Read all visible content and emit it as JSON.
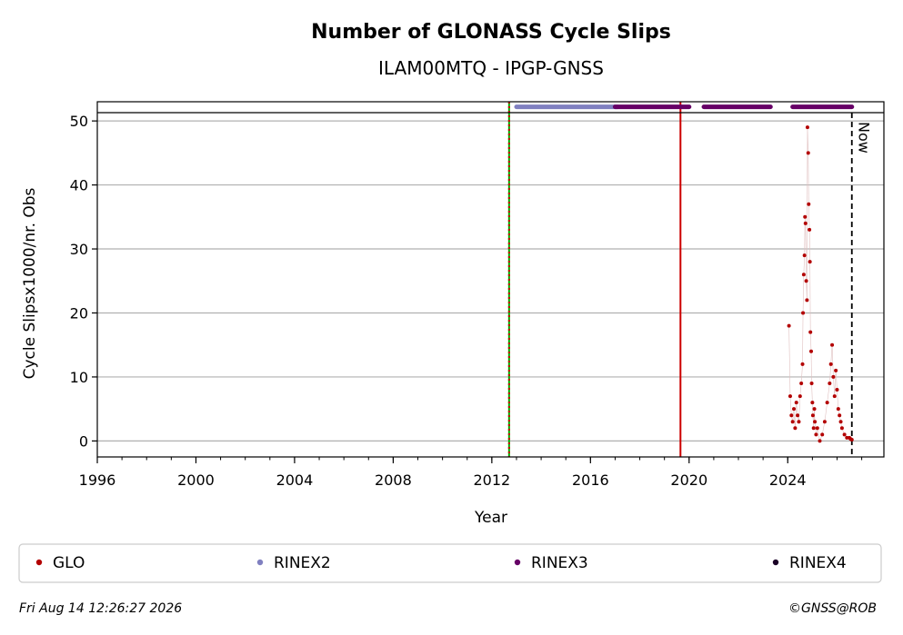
{
  "chart_data": {
    "type": "scatter",
    "title": "Number of GLONASS Cycle Slips",
    "subtitle": "ILAM00MTQ - IPGP-GNSS",
    "xlabel": "Year",
    "ylabel": "Cycle Slipsx1000/nr. Obs",
    "xlim": [
      1996,
      2027.9
    ],
    "ylim": [
      -2.5,
      53
    ],
    "x_ticks": [
      1996,
      2000,
      2004,
      2008,
      2012,
      2016,
      2020,
      2024
    ],
    "y_ticks": [
      0,
      10,
      20,
      30,
      40,
      50
    ],
    "grid": "horizontal",
    "legend_position": "bottom",
    "colors": {
      "GLO": "#b30000",
      "RINEX2": "#8080c0",
      "RINEX3": "#660066",
      "RINEX4": "#1a0026",
      "green_line": "#00aa00",
      "red_line": "#cc0000",
      "grid": "#b0b0b0"
    },
    "series": [
      {
        "name": "GLO",
        "x": [
          2024.05,
          2024.1,
          2024.15,
          2024.2,
          2024.25,
          2024.3,
          2024.35,
          2024.4,
          2024.45,
          2024.5,
          2024.55,
          2024.6,
          2024.62,
          2024.65,
          2024.68,
          2024.7,
          2024.72,
          2024.75,
          2024.78,
          2024.8,
          2024.83,
          2024.85,
          2024.88,
          2024.9,
          2024.92,
          2024.95,
          2024.97,
          2025.0,
          2025.02,
          2025.05,
          2025.08,
          2025.1,
          2025.15,
          2025.2,
          2025.3,
          2025.4,
          2025.5,
          2025.6,
          2025.7,
          2025.75,
          2025.8,
          2025.85,
          2025.9,
          2025.95,
          2026.0,
          2026.05,
          2026.1,
          2026.15,
          2026.2,
          2026.3,
          2026.4,
          2026.5,
          2026.55,
          2026.6
        ],
        "y": [
          18,
          7,
          4,
          3,
          5,
          2,
          6,
          4,
          3,
          7,
          9,
          12,
          20,
          26,
          29,
          35,
          34,
          25,
          22,
          49,
          45,
          37,
          33,
          28,
          17,
          14,
          9,
          6,
          4,
          2,
          5,
          3,
          1,
          2,
          0,
          1,
          3,
          6,
          9,
          12,
          15,
          10,
          7,
          11,
          8,
          5,
          4,
          3,
          2,
          1,
          0.5,
          0.5,
          0.3,
          0.2
        ]
      },
      {
        "name": "RINEX2",
        "segments": [
          [
            2013.0,
            2017.1
          ]
        ],
        "y": 52.2
      },
      {
        "name": "RINEX3",
        "segments": [
          [
            2017.0,
            2020.0
          ],
          [
            2020.6,
            2023.3
          ],
          [
            2024.2,
            2026.6
          ]
        ],
        "y": 52.2
      },
      {
        "name": "RINEX4",
        "segments": [],
        "y": 52.2
      }
    ],
    "vertical_lines": [
      {
        "x": 2012.7,
        "style": "green-red-dotted"
      },
      {
        "x": 2019.65,
        "style": "red-solid"
      },
      {
        "x": 2026.6,
        "style": "black-dashed",
        "label": "Now"
      }
    ]
  },
  "legend": {
    "items": [
      {
        "label": "GLO",
        "color": "#b30000"
      },
      {
        "label": "RINEX2",
        "color": "#8080c0"
      },
      {
        "label": "RINEX3",
        "color": "#660066"
      },
      {
        "label": "RINEX4",
        "color": "#1a0026"
      }
    ]
  },
  "footer": {
    "timestamp": "Fri Aug 14 12:26:27 2026",
    "copyright": "©GNSS@ROB"
  }
}
